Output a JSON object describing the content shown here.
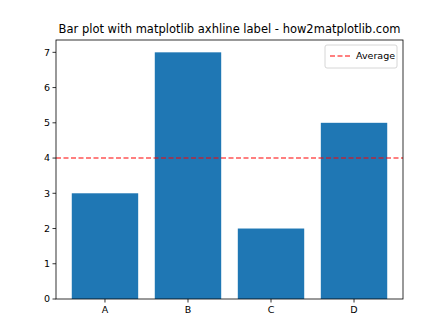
{
  "chart_data": {
    "type": "bar",
    "title": "Bar plot with matplotlib axhline label - how2matplotlib.com",
    "categories": [
      "A",
      "B",
      "C",
      "D"
    ],
    "values": [
      3,
      7,
      2,
      5
    ],
    "color": "#1f77b4",
    "ylim": [
      0,
      7.35
    ],
    "yticks": [
      0,
      1,
      2,
      3,
      4,
      5,
      6,
      7
    ],
    "grid": false,
    "legend": "upper right",
    "reference_lines": [
      {
        "name": "Average",
        "value": 4,
        "color": "#ff0000",
        "line_style": "dashed"
      }
    ]
  }
}
